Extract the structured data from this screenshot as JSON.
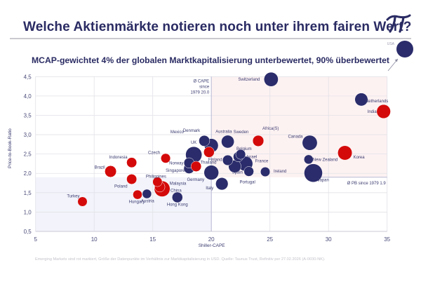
{
  "header": {
    "title": "Welche Aktienmärkte notieren noch unter ihrem fairen Wert?",
    "logo_icon": "pi-icon",
    "logo_glyph": "π"
  },
  "subtitle": "MCAP-gewichtet 4% der globalen Marktkapitalisierung unterbewertet, 90% überbewertet",
  "footer": "Emerging Markets sind rot markiert, Größe der Datenpunkte im Verhältnis zur Marktkapitalisierung in USD. Quelle: Taunus Trust, Refinitiv per 27.02.2026 (A-0030-NK).",
  "colors": {
    "developed": "#2b2c6b",
    "emerging": "#d40a0a",
    "overvalued_zone": "#fdf2f2",
    "undervalued_zone": "#f3f4fb",
    "grid": "#e2e2e8",
    "avg_line": "#b9bad6"
  },
  "chart_data": {
    "type": "scatter",
    "title": "MCAP-gewichtet 4% der globalen Marktkapitalisierung unterbewertet, 90% überbewertet",
    "xlabel": "Shiller-CAPE",
    "ylabel": "Price-to-Book-Ratio",
    "xlim": [
      5,
      35
    ],
    "ylim": [
      0.5,
      4.5
    ],
    "xticks": [
      5,
      10,
      15,
      20,
      25,
      30,
      35
    ],
    "xtick_labels": [
      "5",
      "10",
      "15",
      "20",
      "25",
      "30",
      "35"
    ],
    "yticks": [
      0.5,
      1.0,
      1.5,
      2.0,
      2.5,
      3.0,
      3.5,
      4.0,
      4.5
    ],
    "ytick_labels": [
      "0,5",
      "1,0",
      "1,5",
      "2,0",
      "2,5",
      "3,0",
      "3,5",
      "4,0",
      "4,5"
    ],
    "grid": true,
    "bubble_size": "market capitalization in USD (relative)",
    "reference_lines": [
      {
        "axis": "x",
        "value": 20.0,
        "label": [
          "Ø CAPE",
          "since",
          "1979 20.0"
        ]
      },
      {
        "axis": "y",
        "value": 1.9,
        "label": [
          "Ø PB since 1979 1.9"
        ]
      }
    ],
    "offscale_point": {
      "name": "USA",
      "group": "developed",
      "size": 12,
      "note": "outside plotted range (upper right), indicated by arrow"
    },
    "points": [
      {
        "name": "Switzerland",
        "x": 25.1,
        "y": 4.43,
        "size": 3.2,
        "group": "developed"
      },
      {
        "name": "Netherlands",
        "x": 32.8,
        "y": 3.91,
        "size": 2.5,
        "group": "developed"
      },
      {
        "name": "India",
        "x": 34.7,
        "y": 3.6,
        "size": 3.0,
        "group": "emerging"
      },
      {
        "name": "Denmark",
        "x": 19.4,
        "y": 2.84,
        "size": 1.5,
        "group": "developed"
      },
      {
        "name": "Australia",
        "x": 20.0,
        "y": 2.72,
        "size": 3.0,
        "group": "developed"
      },
      {
        "name": "Sweden",
        "x": 21.4,
        "y": 2.82,
        "size": 2.4,
        "group": "developed"
      },
      {
        "name": "Africa(S)",
        "x": 24.0,
        "y": 2.84,
        "size": 1.6,
        "group": "emerging"
      },
      {
        "name": "Canada",
        "x": 28.4,
        "y": 2.79,
        "size": 3.7,
        "group": "developed"
      },
      {
        "name": "Mexico",
        "x": 19.8,
        "y": 2.55,
        "size": 1.4,
        "group": "emerging"
      },
      {
        "name": "UK",
        "x": 18.5,
        "y": 2.48,
        "size": 4.6,
        "group": "developed"
      },
      {
        "name": "Belgium",
        "x": 22.5,
        "y": 2.49,
        "size": 1.1,
        "group": "developed"
      },
      {
        "name": "Israel",
        "x": 22.3,
        "y": 2.43,
        "size": 1.2,
        "group": "developed"
      },
      {
        "name": "Finland",
        "x": 21.4,
        "y": 2.34,
        "size": 1.3,
        "group": "developed"
      },
      {
        "name": "France",
        "x": 22.9,
        "y": 2.25,
        "size": 3.6,
        "group": "developed"
      },
      {
        "name": "Spain",
        "x": 22.0,
        "y": 2.18,
        "size": 2.3,
        "group": "developed"
      },
      {
        "name": "Portugal",
        "x": 23.2,
        "y": 2.05,
        "size": 1.1,
        "group": "developed"
      },
      {
        "name": "Ireland",
        "x": 24.6,
        "y": 2.04,
        "size": 1.0,
        "group": "developed"
      },
      {
        "name": "Germany",
        "x": 20.0,
        "y": 2.02,
        "size": 3.5,
        "group": "developed"
      },
      {
        "name": "Italy",
        "x": 20.9,
        "y": 1.73,
        "size": 2.2,
        "group": "developed"
      },
      {
        "name": "Korea",
        "x": 31.4,
        "y": 2.53,
        "size": 3.3,
        "group": "emerging"
      },
      {
        "name": "New Zealand",
        "x": 28.3,
        "y": 2.36,
        "size": 0.9,
        "group": "developed"
      },
      {
        "name": "Japan",
        "x": 28.7,
        "y": 2.01,
        "size": 6.2,
        "group": "developed"
      },
      {
        "name": "Czech",
        "x": 16.1,
        "y": 2.39,
        "size": 1.0,
        "group": "emerging"
      },
      {
        "name": "Indonesia",
        "x": 13.2,
        "y": 2.28,
        "size": 1.2,
        "group": "emerging"
      },
      {
        "name": "Norway",
        "x": 18.1,
        "y": 2.27,
        "size": 1.3,
        "group": "developed"
      },
      {
        "name": "Singapore",
        "x": 18.1,
        "y": 2.13,
        "size": 1.4,
        "group": "developed"
      },
      {
        "name": "Thailand",
        "x": 18.7,
        "y": 2.18,
        "size": 1.3,
        "group": "emerging"
      },
      {
        "name": "Brazil",
        "x": 11.4,
        "y": 2.05,
        "size": 1.8,
        "group": "emerging"
      },
      {
        "name": "Poland",
        "x": 13.2,
        "y": 1.85,
        "size": 1.2,
        "group": "emerging"
      },
      {
        "name": "Philippines",
        "x": 15.4,
        "y": 1.78,
        "size": 1.0,
        "group": "emerging"
      },
      {
        "name": "Malaysia",
        "x": 15.6,
        "y": 1.65,
        "size": 1.3,
        "group": "emerging"
      },
      {
        "name": "China",
        "x": 15.8,
        "y": 1.6,
        "size": 4.2,
        "group": "emerging"
      },
      {
        "name": "Hungary",
        "x": 13.7,
        "y": 1.45,
        "size": 0.9,
        "group": "emerging"
      },
      {
        "name": "Austria",
        "x": 14.5,
        "y": 1.47,
        "size": 0.9,
        "group": "developed"
      },
      {
        "name": "Hong Kong",
        "x": 17.1,
        "y": 1.38,
        "size": 1.4,
        "group": "developed"
      },
      {
        "name": "Turkey",
        "x": 9.0,
        "y": 1.27,
        "size": 1.0,
        "group": "emerging"
      }
    ]
  }
}
